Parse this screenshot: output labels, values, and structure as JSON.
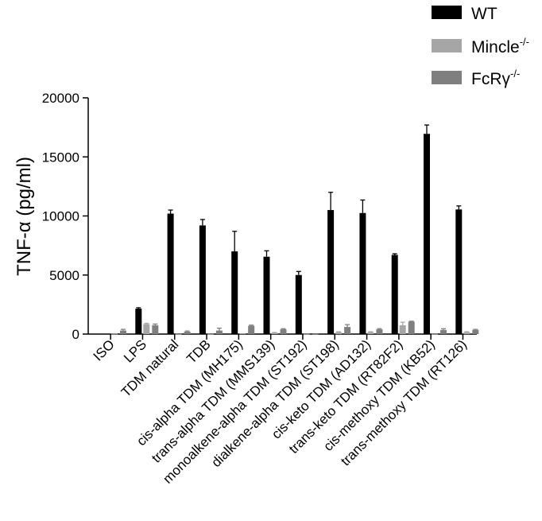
{
  "chart_data": {
    "type": "bar",
    "ylabel": "TNF-α (pg/ml)",
    "ylim": [
      0,
      20000
    ],
    "yticks": [
      0,
      5000,
      10000,
      15000,
      20000
    ],
    "categories": [
      "ISO",
      "LPS",
      "TDM natural",
      "TDB",
      "cis-alpha TDM (MH175)",
      "trans-alpha TDM (MMS139)",
      "monoalkene-alpha TDM (ST192)",
      "dialkene-alpha TDM (ST198)",
      "cis-keto TDM (AD132)",
      "trans-keto TDM (RT82F2)",
      "cis-methoxy TDM (KB52)",
      "trans-methoxy TDM (RT126)"
    ],
    "series": [
      {
        "name": "WT",
        "values": [
          30,
          2150,
          10200,
          9200,
          7000,
          6550,
          5000,
          10500,
          10250,
          6700,
          16950,
          10550
        ],
        "errors": [
          0,
          80,
          300,
          500,
          1700,
          500,
          300,
          1500,
          1100,
          100,
          750,
          300
        ]
      },
      {
        "name": "Mincle",
        "superscript": "-/-",
        "values": [
          30,
          850,
          20,
          20,
          50,
          100,
          20,
          150,
          150,
          750,
          20,
          150
        ],
        "errors": [
          0,
          60,
          0,
          0,
          0,
          30,
          0,
          50,
          50,
          250,
          0,
          50
        ]
      },
      {
        "name": "FcRγ",
        "superscript": "-/-",
        "values": [
          300,
          750,
          200,
          300,
          700,
          400,
          20,
          600,
          400,
          1050,
          350,
          350
        ],
        "errors": [
          100,
          100,
          60,
          200,
          60,
          50,
          0,
          200,
          60,
          40,
          100,
          50
        ]
      }
    ],
    "legend_position": "top-right",
    "colors": {
      "WT": "#000000",
      "Mincle": "#a6a6a6",
      "FcRγ": "#7f7f7f"
    },
    "grid": false
  }
}
